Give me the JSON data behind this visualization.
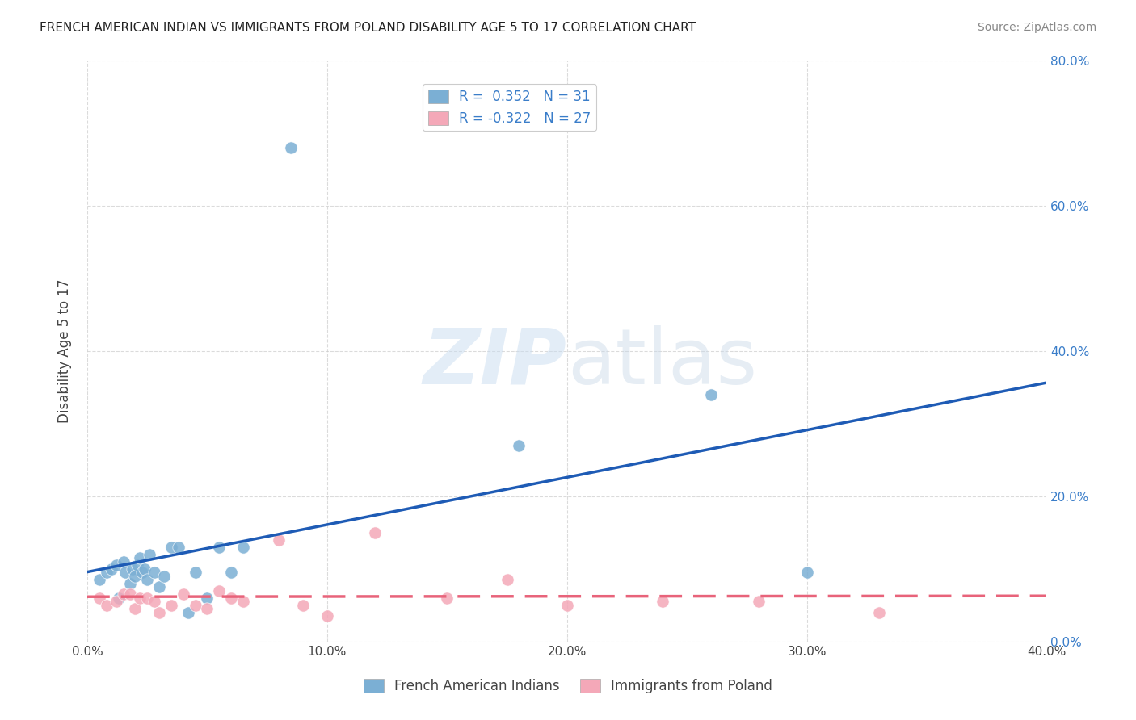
{
  "title": "FRENCH AMERICAN INDIAN VS IMMIGRANTS FROM POLAND DISABILITY AGE 5 TO 17 CORRELATION CHART",
  "source": "Source: ZipAtlas.com",
  "ylabel": "Disability Age 5 to 17",
  "xlim": [
    0.0,
    0.4
  ],
  "ylim": [
    0.0,
    0.8
  ],
  "xticks": [
    0.0,
    0.1,
    0.2,
    0.3,
    0.4
  ],
  "yticks": [
    0.0,
    0.2,
    0.4,
    0.6,
    0.8
  ],
  "xticklabels": [
    "0.0%",
    "10.0%",
    "20.0%",
    "30.0%",
    "40.0%"
  ],
  "right_yticklabels": [
    "0.0%",
    "20.0%",
    "40.0%",
    "60.0%",
    "80.0%"
  ],
  "blue_label": "French American Indians",
  "pink_label": "Immigrants from Poland",
  "blue_R": "0.352",
  "blue_N": "31",
  "pink_R": "-0.322",
  "pink_N": "27",
  "blue_color": "#7BAFD4",
  "pink_color": "#F4A8B8",
  "blue_line_color": "#1E5BB5",
  "pink_line_color": "#E8637A",
  "blue_scatter_x": [
    0.005,
    0.008,
    0.01,
    0.012,
    0.013,
    0.015,
    0.016,
    0.018,
    0.019,
    0.02,
    0.021,
    0.022,
    0.023,
    0.024,
    0.025,
    0.026,
    0.028,
    0.03,
    0.032,
    0.035,
    0.038,
    0.042,
    0.045,
    0.05,
    0.055,
    0.06,
    0.065,
    0.085,
    0.18,
    0.26,
    0.3
  ],
  "blue_scatter_y": [
    0.085,
    0.095,
    0.1,
    0.105,
    0.06,
    0.11,
    0.095,
    0.08,
    0.1,
    0.09,
    0.105,
    0.115,
    0.095,
    0.1,
    0.085,
    0.12,
    0.095,
    0.075,
    0.09,
    0.13,
    0.13,
    0.04,
    0.095,
    0.06,
    0.13,
    0.095,
    0.13,
    0.68,
    0.27,
    0.34,
    0.095
  ],
  "pink_scatter_x": [
    0.005,
    0.008,
    0.012,
    0.015,
    0.018,
    0.02,
    0.022,
    0.025,
    0.028,
    0.03,
    0.035,
    0.04,
    0.045,
    0.05,
    0.055,
    0.06,
    0.065,
    0.08,
    0.09,
    0.1,
    0.12,
    0.15,
    0.175,
    0.2,
    0.24,
    0.28,
    0.33
  ],
  "pink_scatter_y": [
    0.06,
    0.05,
    0.055,
    0.065,
    0.065,
    0.045,
    0.06,
    0.06,
    0.055,
    0.04,
    0.05,
    0.065,
    0.05,
    0.045,
    0.07,
    0.06,
    0.055,
    0.14,
    0.05,
    0.035,
    0.15,
    0.06,
    0.085,
    0.05,
    0.055,
    0.055,
    0.04
  ]
}
